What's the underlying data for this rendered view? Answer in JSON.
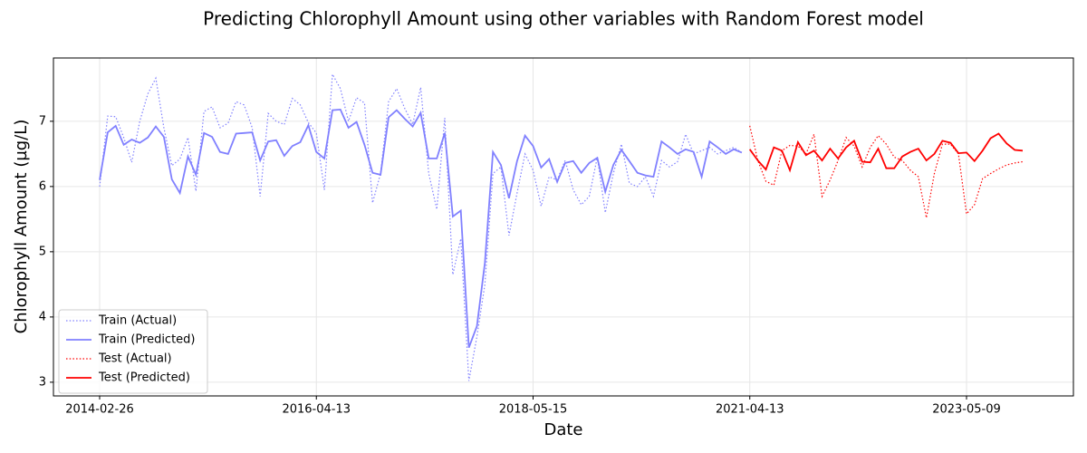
{
  "chart_data": {
    "type": "line",
    "title": "Predicting Chlorophyll Amount using other variables with Random Forest model",
    "x_label": "Date",
    "y_label": "Chlorophyll Amount (µg/L)",
    "categories": [
      "2014-02-26",
      null,
      null,
      null,
      null,
      null,
      null,
      null,
      null,
      null,
      null,
      null,
      null,
      null,
      null,
      null,
      null,
      null,
      null,
      null,
      null,
      null,
      null,
      null,
      null,
      null,
      null,
      "2016-04-13",
      null,
      null,
      null,
      null,
      null,
      null,
      null,
      null,
      null,
      null,
      null,
      null,
      null,
      null,
      null,
      null,
      null,
      null,
      null,
      null,
      null,
      null,
      null,
      null,
      null,
      null,
      "2018-05-15",
      null,
      null,
      null,
      null,
      null,
      null,
      null,
      null,
      null,
      null,
      null,
      null,
      null,
      null,
      null,
      null,
      null,
      null,
      null,
      null,
      null,
      null,
      null,
      null,
      null,
      null,
      "2021-04-13",
      null,
      null,
      null,
      null,
      null,
      null,
      null,
      null,
      null,
      null,
      null,
      null,
      null,
      null,
      null,
      null,
      null,
      null,
      null,
      null,
      null,
      null,
      null,
      null,
      null,
      null,
      "2023-05-09",
      null,
      null,
      null,
      null,
      null,
      null,
      null
    ],
    "ylim": [
      2.79,
      7.97
    ],
    "yticks": [
      3,
      4,
      5,
      6,
      7
    ],
    "grid": true,
    "legend": "lower left",
    "series": [
      {
        "name": "Train (Actual)",
        "color": "#8080ff",
        "linestyle": "dotted",
        "values": [
          6.0,
          7.08,
          7.07,
          6.75,
          6.37,
          7.0,
          7.42,
          7.66,
          6.9,
          6.32,
          6.42,
          6.75,
          5.93,
          7.15,
          7.22,
          6.9,
          6.97,
          7.3,
          7.25,
          6.9,
          5.85,
          7.12,
          7.0,
          6.95,
          7.35,
          7.25,
          6.98,
          6.82,
          5.95,
          7.72,
          7.5,
          7.0,
          7.36,
          7.28,
          5.75,
          6.2,
          7.3,
          7.5,
          7.2,
          6.95,
          7.52,
          6.2,
          5.65,
          7.05,
          4.65,
          5.2,
          3.02,
          3.7,
          4.5,
          6.2,
          6.3,
          5.25,
          5.9,
          6.5,
          6.25,
          5.7,
          6.15,
          6.1,
          6.4,
          5.95,
          5.72,
          5.85,
          6.45,
          5.6,
          6.2,
          6.65,
          6.05,
          6.0,
          6.15,
          5.85,
          6.4,
          6.3,
          6.38,
          6.8,
          6.5,
          6.55,
          6.6,
          6.5,
          6.55,
          6.6,
          6.52,
          null,
          null,
          null,
          null,
          null,
          null,
          null,
          null,
          null,
          null,
          null,
          null,
          null,
          null,
          null,
          null,
          null,
          null,
          null,
          null,
          null,
          null,
          null,
          null,
          null,
          null,
          null,
          null,
          null,
          null,
          null,
          null,
          null,
          null,
          null
        ]
      },
      {
        "name": "Train (Predicted)",
        "color": "#8080ff",
        "linestyle": "solid",
        "values": [
          6.1,
          6.83,
          6.93,
          6.64,
          6.72,
          6.67,
          6.75,
          6.92,
          6.76,
          6.11,
          5.9,
          6.46,
          6.18,
          6.82,
          6.76,
          6.53,
          6.5,
          6.81,
          6.82,
          6.83,
          6.4,
          6.69,
          6.71,
          6.47,
          6.62,
          6.68,
          6.94,
          6.53,
          6.43,
          7.17,
          7.18,
          6.9,
          6.99,
          6.64,
          6.21,
          6.18,
          7.06,
          7.17,
          7.04,
          6.92,
          7.13,
          6.43,
          6.43,
          6.82,
          5.54,
          5.63,
          3.53,
          3.86,
          4.83,
          6.53,
          6.33,
          5.82,
          6.39,
          6.78,
          6.62,
          6.29,
          6.42,
          6.07,
          6.36,
          6.39,
          6.21,
          6.36,
          6.44,
          5.92,
          6.33,
          6.56,
          6.39,
          6.21,
          6.17,
          6.15,
          6.69,
          6.6,
          6.5,
          6.57,
          6.53,
          6.15,
          6.69,
          6.6,
          6.5,
          6.57,
          6.52,
          null,
          null,
          null,
          null,
          null,
          null,
          null,
          null,
          null,
          null,
          null,
          null,
          null,
          null,
          null,
          null,
          null,
          null,
          null,
          null,
          null,
          null,
          null,
          null,
          null,
          null,
          null,
          null,
          null,
          null,
          null,
          null,
          null,
          null,
          null
        ]
      },
      {
        "name": "Test (Actual)",
        "color": "#ff0000",
        "linestyle": "dotted",
        "values": [
          null,
          null,
          null,
          null,
          null,
          null,
          null,
          null,
          null,
          null,
          null,
          null,
          null,
          null,
          null,
          null,
          null,
          null,
          null,
          null,
          null,
          null,
          null,
          null,
          null,
          null,
          null,
          null,
          null,
          null,
          null,
          null,
          null,
          null,
          null,
          null,
          null,
          null,
          null,
          null,
          null,
          null,
          null,
          null,
          null,
          null,
          null,
          null,
          null,
          null,
          null,
          null,
          null,
          null,
          null,
          null,
          null,
          null,
          null,
          null,
          null,
          null,
          null,
          null,
          null,
          null,
          null,
          null,
          null,
          null,
          null,
          null,
          null,
          null,
          null,
          null,
          null,
          null,
          null,
          null,
          null,
          6.93,
          6.4,
          6.08,
          6.02,
          6.55,
          6.63,
          6.62,
          6.5,
          6.8,
          5.85,
          6.1,
          6.4,
          6.75,
          6.62,
          6.3,
          6.6,
          6.78,
          6.65,
          6.45,
          6.4,
          6.25,
          6.15,
          5.52,
          6.2,
          6.65,
          6.65,
          6.5,
          5.58,
          5.72,
          6.12,
          6.2,
          6.27,
          6.33,
          6.36,
          6.38
        ]
      },
      {
        "name": "Test (Predicted)",
        "color": "#ff0000",
        "linestyle": "solid",
        "values": [
          null,
          null,
          null,
          null,
          null,
          null,
          null,
          null,
          null,
          null,
          null,
          null,
          null,
          null,
          null,
          null,
          null,
          null,
          null,
          null,
          null,
          null,
          null,
          null,
          null,
          null,
          null,
          null,
          null,
          null,
          null,
          null,
          null,
          null,
          null,
          null,
          null,
          null,
          null,
          null,
          null,
          null,
          null,
          null,
          null,
          null,
          null,
          null,
          null,
          null,
          null,
          null,
          null,
          null,
          null,
          null,
          null,
          null,
          null,
          null,
          null,
          null,
          null,
          null,
          null,
          null,
          null,
          null,
          null,
          null,
          null,
          null,
          null,
          null,
          null,
          null,
          null,
          null,
          null,
          null,
          null,
          6.57,
          6.4,
          6.26,
          6.6,
          6.55,
          6.25,
          6.68,
          6.48,
          6.55,
          6.4,
          6.58,
          6.43,
          6.6,
          6.7,
          6.38,
          6.37,
          6.58,
          6.28,
          6.28,
          6.46,
          6.53,
          6.58,
          6.4,
          6.5,
          6.7,
          6.67,
          6.51,
          6.52,
          6.39,
          6.55,
          6.74,
          6.81,
          6.66,
          6.56,
          6.55
        ]
      }
    ]
  }
}
